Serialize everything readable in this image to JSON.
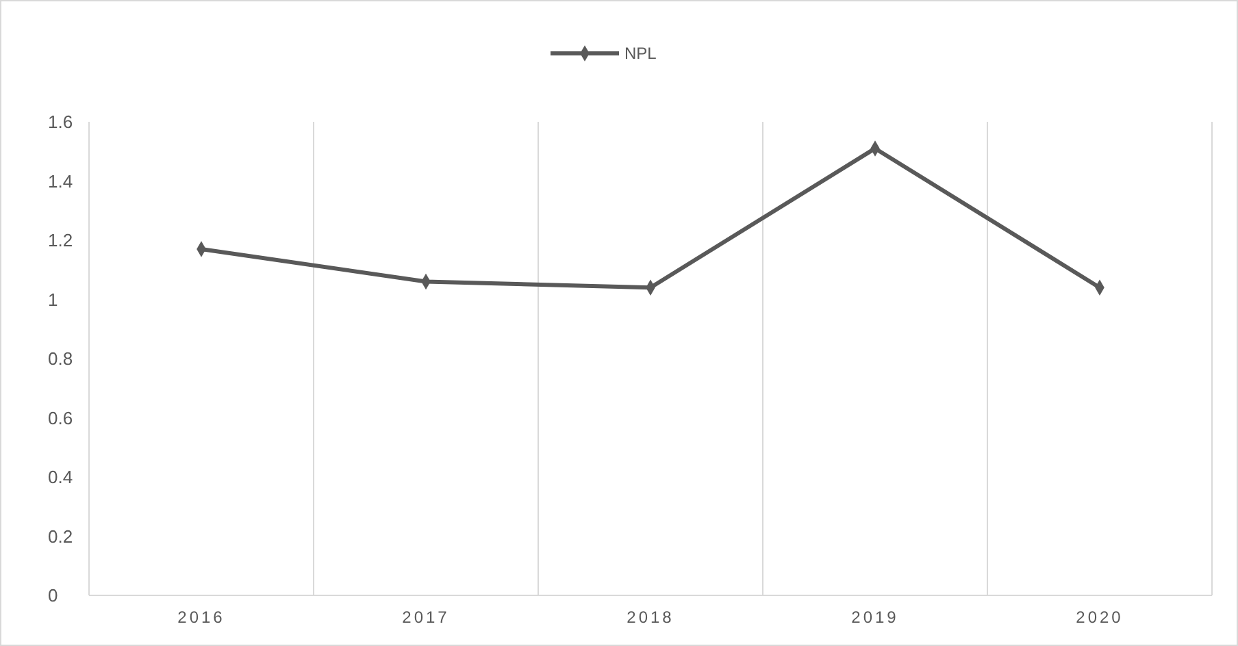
{
  "chart_data": {
    "type": "line",
    "categories": [
      "2016",
      "2017",
      "2018",
      "2019",
      "2020"
    ],
    "series": [
      {
        "name": "NPL",
        "color": "#595959",
        "values": [
          1.17,
          1.06,
          1.04,
          1.51,
          1.04
        ]
      }
    ],
    "ylim": [
      0,
      1.6
    ],
    "yticks": [
      0,
      0.2,
      0.4,
      0.6,
      0.8,
      1,
      1.2,
      1.4,
      1.6
    ],
    "grid": "x",
    "legend": "top",
    "marker": "diamond",
    "line_style": "solid"
  }
}
